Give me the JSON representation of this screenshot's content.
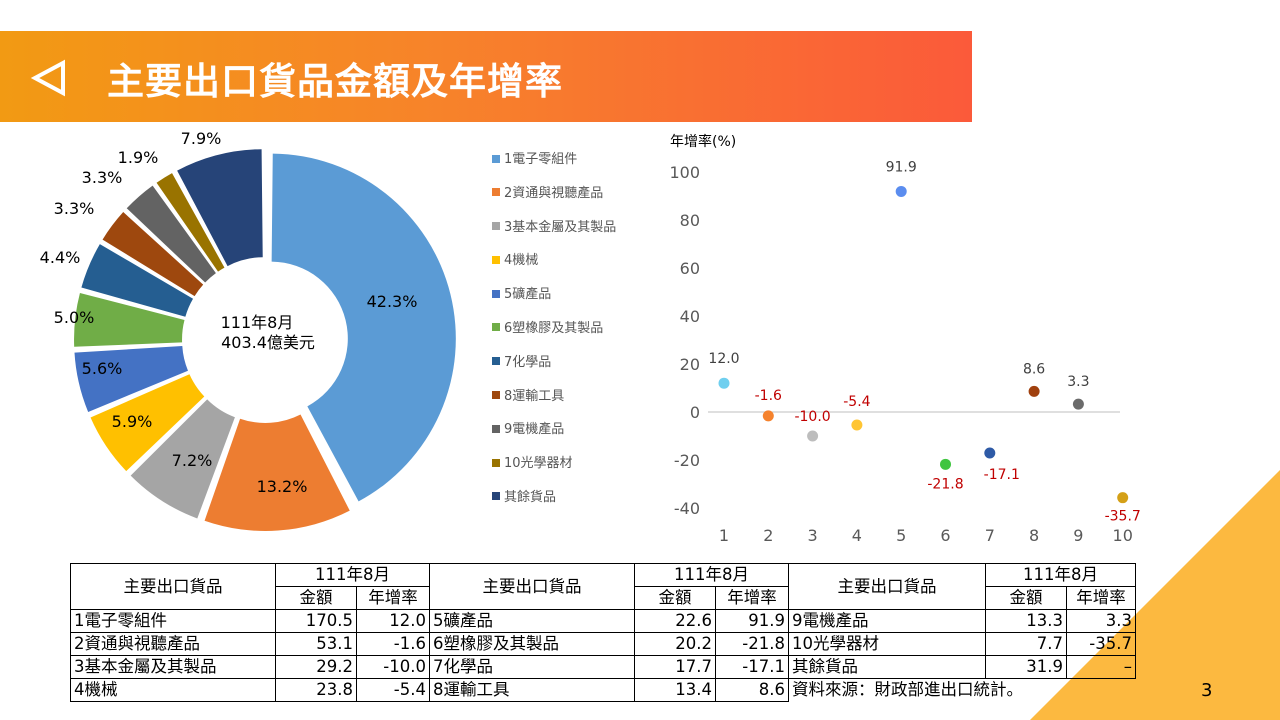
{
  "header": {
    "title": "主要出口貨品金額及年增率"
  },
  "donut": {
    "center_line1": "111年8月",
    "center_line2": "403.4億美元"
  },
  "colors": [
    "#5b9bd5",
    "#ed7d31",
    "#a5a5a5",
    "#ffc000",
    "#4472c4",
    "#70ad47",
    "#255e91",
    "#9e480e",
    "#636363",
    "#997300",
    "#264478"
  ],
  "legend": [
    "1電子零組件",
    "2資通與視聽產品",
    "3基本金屬及其製品",
    "4機械",
    "5礦產品",
    "6塑橡膠及其製品",
    "7化學品",
    "8運輸工具",
    "9電機產品",
    "10光學器材",
    "其餘貨品"
  ],
  "chart_data": [
    {
      "type": "pie",
      "categories": [
        "1電子零組件",
        "2資通與視聽產品",
        "3基本金屬及其製品",
        "4機械",
        "5礦產品",
        "6塑橡膠及其製品",
        "7化學品",
        "8運輸工具",
        "9電機產品",
        "10光學器材",
        "其餘貨品"
      ],
      "values": [
        42.3,
        13.2,
        7.2,
        5.9,
        5.6,
        5.0,
        4.4,
        3.3,
        3.3,
        1.9,
        7.9
      ],
      "labels": [
        "42.3%",
        "13.2%",
        "7.2%",
        "5.9%",
        "5.6%",
        "5.0%",
        "4.4%",
        "3.3%",
        "3.3%",
        "1.9%",
        "7.9%"
      ]
    },
    {
      "type": "scatter",
      "ylabel": "年增率(%)",
      "x": [
        1,
        2,
        3,
        4,
        5,
        6,
        7,
        8,
        9,
        10
      ],
      "y": [
        12.0,
        -1.6,
        -10.0,
        -5.4,
        91.9,
        -21.8,
        -17.1,
        8.6,
        3.3,
        -35.7
      ],
      "labels": [
        "12.0",
        "-1.6",
        "-10.0",
        "-5.4",
        "91.9",
        "-21.8",
        "-17.1",
        "8.6",
        "3.3",
        "-35.7"
      ],
      "point_colors": [
        "#6fcfef",
        "#f5822d",
        "#bdbdbd",
        "#ffc533",
        "#5b8def",
        "#3fc53f",
        "#2e5aa6",
        "#a0400e",
        "#6b6b6b",
        "#d4a017"
      ],
      "ylim": [
        -40,
        100
      ],
      "yticks": [
        -40,
        -20,
        0,
        20,
        40,
        60,
        80,
        100
      ],
      "xticks": [
        "1",
        "2",
        "3",
        "4",
        "5",
        "6",
        "7",
        "8",
        "9",
        "10"
      ]
    }
  ],
  "table": {
    "header_item": "主要出口貨品",
    "header_period": "111年8月",
    "header_amount": "金額",
    "header_growth": "年增率",
    "rows": [
      [
        [
          "1電子零組件",
          "170.5",
          "12.0"
        ],
        [
          "5礦產品",
          "22.6",
          "91.9"
        ],
        [
          "9電機產品",
          "13.3",
          "3.3"
        ]
      ],
      [
        [
          "2資通與視聽產品",
          "53.1",
          "-1.6"
        ],
        [
          "6塑橡膠及其製品",
          "20.2",
          "-21.8"
        ],
        [
          "10光學器材",
          "7.7",
          "-35.7"
        ]
      ],
      [
        [
          "3基本金屬及其製品",
          "29.2",
          "-10.0"
        ],
        [
          "7化學品",
          "17.7",
          "-17.1"
        ],
        [
          "其餘貨品",
          "31.9",
          "–"
        ]
      ],
      [
        [
          "4機械",
          "23.8",
          "-5.4"
        ],
        [
          "8運輸工具",
          "13.4",
          "8.6"
        ]
      ]
    ],
    "source": "資料來源：財政部進出口統計。"
  },
  "page_number": "3"
}
